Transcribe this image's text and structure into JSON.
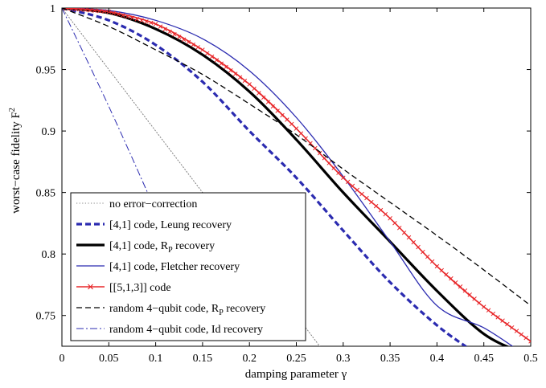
{
  "chart_data": {
    "type": "line",
    "title": "",
    "xlabel": "damping parameter γ",
    "ylabel": {
      "base": "worst−case fidelity F",
      "sup": "2"
    },
    "xlim": [
      0,
      0.5
    ],
    "ylim": [
      0.725,
      1.0
    ],
    "x_ticks": [
      "0",
      "0.05",
      "0.1",
      "0.15",
      "0.2",
      "0.25",
      "0.3",
      "0.35",
      "0.4",
      "0.45",
      "0.5"
    ],
    "y_ticks": [
      "0.75",
      "0.8",
      "0.85",
      "0.9",
      "0.95",
      "1"
    ],
    "y_tick_values": [
      0.75,
      0.8,
      0.85,
      0.9,
      0.95,
      1.0
    ],
    "grid": false,
    "legend_position": "lower-left",
    "series": [
      {
        "name": "no error−correction",
        "name_parts": [
          {
            "t": "no error−correction"
          }
        ],
        "color": "#7f7f7f",
        "style": "dotted",
        "width": 1,
        "x": [
          0,
          0.05,
          0.1,
          0.15,
          0.2,
          0.25,
          0.28
        ],
        "y": [
          1.0,
          0.95,
          0.9,
          0.85,
          0.8,
          0.75,
          0.72
        ]
      },
      {
        "name": "[4,1] code, Leung recovery",
        "name_parts": [
          {
            "t": "[4,1] code, Leung recovery"
          }
        ],
        "color": "#2b2bb0",
        "style": "dashed",
        "width": 3.2,
        "x": [
          0,
          0.05,
          0.1,
          0.15,
          0.2,
          0.25,
          0.3,
          0.35,
          0.4,
          0.44
        ],
        "y": [
          1.0,
          0.99,
          0.97,
          0.94,
          0.9,
          0.862,
          0.819,
          0.777,
          0.742,
          0.72
        ]
      },
      {
        "name": "[4,1] code, R_P recovery",
        "name_parts": [
          {
            "t": "[4,1] code, R"
          },
          {
            "t": "P",
            "sub": true
          },
          {
            "t": " recovery"
          }
        ],
        "color": "#000000",
        "style": "solid",
        "width": 3.2,
        "x": [
          0,
          0.05,
          0.1,
          0.15,
          0.2,
          0.25,
          0.3,
          0.35,
          0.4,
          0.45,
          0.49
        ],
        "y": [
          1.0,
          0.996,
          0.983,
          0.962,
          0.932,
          0.893,
          0.85,
          0.81,
          0.77,
          0.735,
          0.72
        ]
      },
      {
        "name": "[4,1] code, Fletcher recovery",
        "name_parts": [
          {
            "t": "[4,1] code, Fletcher recovery"
          }
        ],
        "color": "#2b2bb0",
        "style": "solid",
        "width": 1.3,
        "x": [
          0,
          0.05,
          0.1,
          0.15,
          0.2,
          0.25,
          0.3,
          0.35,
          0.4,
          0.45,
          0.49
        ],
        "y": [
          1.0,
          0.998,
          0.99,
          0.975,
          0.949,
          0.911,
          0.863,
          0.81,
          0.758,
          0.74,
          0.72
        ]
      },
      {
        "name": "[[5,1,3]] code",
        "name_parts": [
          {
            "t": "[[5,1,3]] code"
          }
        ],
        "color": "#e8282b",
        "style": "solid-x",
        "width": 1.6,
        "x": [
          0,
          0.05,
          0.1,
          0.15,
          0.2,
          0.25,
          0.3,
          0.35,
          0.4,
          0.45,
          0.5
        ],
        "y": [
          1.0,
          0.997,
          0.987,
          0.966,
          0.938,
          0.902,
          0.862,
          0.829,
          0.79,
          0.757,
          0.729
        ]
      },
      {
        "name": "random 4−qubit code, R_P recovery",
        "name_parts": [
          {
            "t": "random 4−qubit code, R"
          },
          {
            "t": "P",
            "sub": true
          },
          {
            "t": " recovery"
          }
        ],
        "color": "#000000",
        "style": "dashed",
        "width": 1.3,
        "x": [
          0,
          0.05,
          0.1,
          0.15,
          0.2,
          0.25,
          0.3,
          0.35,
          0.4,
          0.45,
          0.5
        ],
        "y": [
          1.0,
          0.985,
          0.966,
          0.946,
          0.922,
          0.897,
          0.869,
          0.842,
          0.815,
          0.787,
          0.758
        ]
      },
      {
        "name": "random 4−qubit code, Id recovery",
        "name_parts": [
          {
            "t": "random 4−qubit code, Id recovery"
          }
        ],
        "color": "#2b2bb0",
        "style": "dashdot",
        "width": 1,
        "x": [
          0,
          0.05,
          0.1,
          0.15,
          0.16
        ],
        "y": [
          1.0,
          0.92,
          0.835,
          0.748,
          0.73
        ]
      }
    ]
  }
}
